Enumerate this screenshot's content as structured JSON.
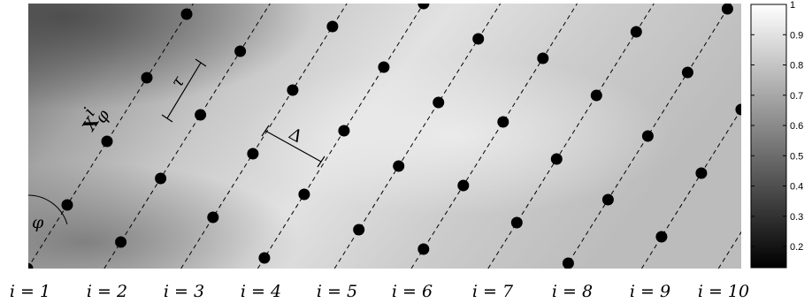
{
  "figure": {
    "title": "",
    "i_labels": [
      "i = 1",
      "i = 2",
      "i = 3",
      "i = 4",
      "i = 5",
      "i = 6",
      "i = 7",
      "i = 8",
      "i = 9",
      "i = 10"
    ],
    "annotations": {
      "phi": "φ",
      "tau": "τ",
      "delta": "Δ",
      "x_symbol": "X",
      "x_super": "i",
      "x_sub": "φ"
    }
  },
  "colorbar": {
    "ticks": [
      "1",
      "0.9",
      "0.8",
      "0.7",
      "0.6",
      "0.5",
      "0.4",
      "0.3",
      "0.2"
    ],
    "tick_values": [
      1,
      0.9,
      0.8,
      0.7,
      0.6,
      0.5,
      0.4,
      0.3,
      0.2
    ],
    "range": [
      0.13,
      1
    ]
  },
  "colors": {
    "line": "#000000",
    "dot": "#000000",
    "background_light": "#d6d6d6",
    "background_dark": "#7a7a7a"
  }
}
